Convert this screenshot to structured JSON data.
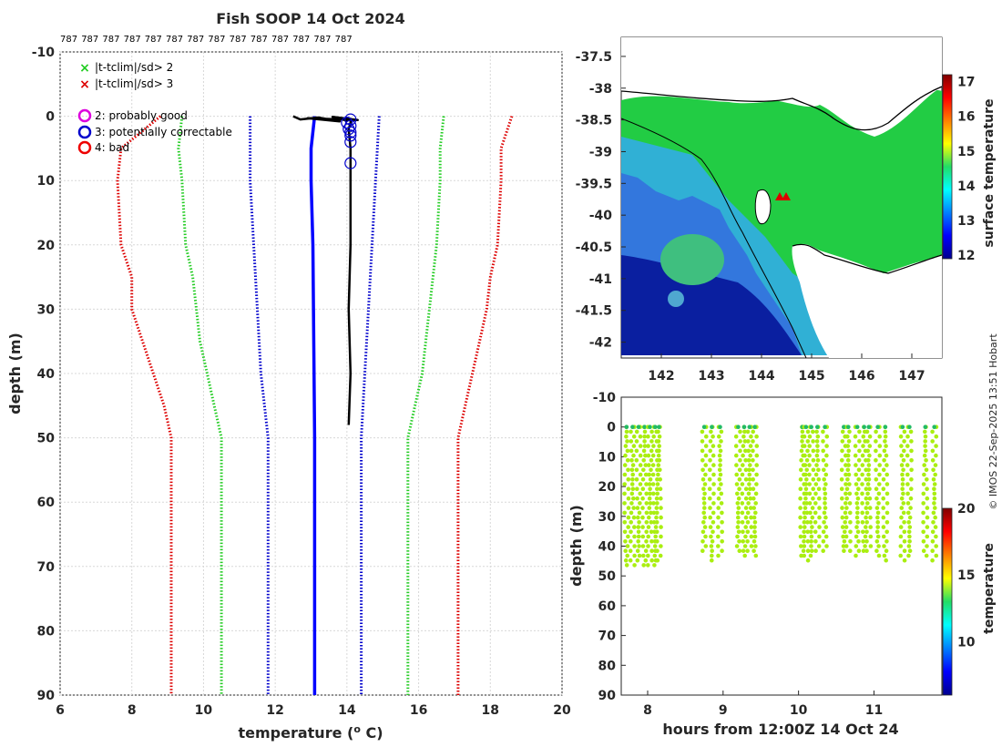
{
  "chart_data": [
    {
      "type": "line",
      "title": "Fish SOOP 14 Oct 2024",
      "top_labels": [
        "787",
        "787",
        "787",
        "787",
        "787",
        "787",
        "787",
        "787",
        "787",
        "787",
        "787",
        "787",
        "787",
        "787"
      ],
      "xlabel": "temperature (",
      "xlabel_sup": "o",
      "xlabel_end": " C)",
      "ylabel": "depth (m)",
      "xlim": [
        6,
        20
      ],
      "ylim": [
        90,
        -10
      ],
      "xticks": [
        "6",
        "8",
        "10",
        "12",
        "14",
        "16",
        "18",
        "20"
      ],
      "yticks": [
        "-10",
        "0",
        "10",
        "20",
        "30",
        "40",
        "50",
        "60",
        "70",
        "80",
        "90"
      ],
      "grid": true,
      "legend": [
        {
          "symbol": "x",
          "color": "#22cc22",
          "label": "|t-tclim|/sd> 2"
        },
        {
          "symbol": "x",
          "color": "#dd0000",
          "label": "|t-tclim|/sd> 3"
        },
        {
          "symbol": "o",
          "color": "#dd00dd",
          "label": "2: probably good"
        },
        {
          "symbol": "o",
          "color": "#0000cc",
          "label": "3: potentially correctable"
        },
        {
          "symbol": "o",
          "color": "#ee0000",
          "label": "4: bad"
        }
      ],
      "series": [
        {
          "name": "clim -3sd",
          "color": "#dd0000",
          "style": "dotted",
          "depth": [
            0,
            5,
            10,
            20,
            25,
            30,
            35,
            40,
            45,
            50,
            90
          ],
          "temp": [
            8.8,
            7.7,
            7.6,
            7.7,
            8.0,
            8.0,
            8.3,
            8.6,
            8.9,
            9.1,
            9.1
          ]
        },
        {
          "name": "clim -2sd",
          "color": "#22cc22",
          "style": "dotted",
          "depth": [
            0,
            5,
            10,
            20,
            25,
            30,
            35,
            40,
            45,
            50,
            90
          ],
          "temp": [
            9.4,
            9.3,
            9.4,
            9.5,
            9.7,
            9.8,
            9.9,
            10.1,
            10.3,
            10.5,
            10.5
          ]
        },
        {
          "name": "clim -1sd",
          "color": "#0000cc",
          "style": "dotted",
          "depth": [
            0,
            10,
            20,
            30,
            40,
            50,
            90
          ],
          "temp": [
            11.3,
            11.3,
            11.4,
            11.5,
            11.6,
            11.8,
            11.8
          ]
        },
        {
          "name": "clim mean",
          "color": "#0000ff",
          "style": "solid",
          "depth": [
            0,
            5,
            10,
            20,
            50,
            90
          ],
          "temp": [
            13.1,
            13.0,
            13.0,
            13.05,
            13.1,
            13.1
          ]
        },
        {
          "name": "clim +1sd",
          "color": "#0000cc",
          "style": "dotted",
          "depth": [
            0,
            10,
            20,
            30,
            40,
            50,
            90
          ],
          "temp": [
            14.9,
            14.8,
            14.7,
            14.6,
            14.5,
            14.4,
            14.4
          ]
        },
        {
          "name": "clim +2sd",
          "color": "#22cc22",
          "style": "dotted",
          "depth": [
            0,
            5,
            10,
            20,
            25,
            30,
            35,
            40,
            45,
            50,
            90
          ],
          "temp": [
            16.7,
            16.6,
            16.6,
            16.5,
            16.4,
            16.3,
            16.2,
            16.1,
            15.9,
            15.7,
            15.7
          ]
        },
        {
          "name": "clim +3sd",
          "color": "#dd0000",
          "style": "dotted",
          "depth": [
            0,
            5,
            10,
            20,
            25,
            30,
            35,
            40,
            45,
            50,
            90
          ],
          "temp": [
            18.6,
            18.3,
            18.3,
            18.2,
            18.0,
            17.9,
            17.7,
            17.5,
            17.3,
            17.1,
            17.1
          ]
        },
        {
          "name": "profile",
          "color": "#000000",
          "style": "solid",
          "depth": [
            0.0,
            0.5,
            0.2,
            0.8,
            0.3,
            0.6,
            0.1,
            0.7,
            0.4,
            1.0,
            2,
            5,
            10,
            20,
            30,
            40,
            48
          ],
          "temp": [
            12.5,
            12.7,
            13.2,
            13.8,
            12.9,
            14.3,
            13.6,
            14.0,
            14.1,
            14.1,
            14.05,
            14.1,
            14.1,
            14.1,
            14.05,
            14.1,
            14.05
          ]
        },
        {
          "name": "flagged 3",
          "color": "#0000cc",
          "style": "circles",
          "depth": [
            0.5,
            1.0,
            1.5,
            2.0,
            2.5,
            3.0,
            4.0,
            7.3
          ],
          "temp": [
            14.1,
            14.0,
            14.1,
            14.05,
            14.1,
            14.1,
            14.1,
            14.1
          ]
        }
      ]
    },
    {
      "type": "heatmap",
      "title": "",
      "xticks": [
        "142",
        "143",
        "144",
        "145",
        "146",
        "147"
      ],
      "yticks": [
        "-37.5",
        "-38",
        "-38.5",
        "-39",
        "-39.5",
        "-40",
        "-40.5",
        "-41",
        "-41.5",
        "-42"
      ],
      "xlim": [
        141.2,
        147.6
      ],
      "ylim": [
        -37.2,
        -42.25
      ],
      "colorbar_label": "surface temperature",
      "colorbar_ticks": [
        "12",
        "13",
        "14",
        "15",
        "16",
        "17"
      ],
      "colorbar_range": [
        11.9,
        17.2
      ],
      "markers": [
        {
          "lon": 144.3,
          "lat": -39.65,
          "color": "#dd0000",
          "symbol": "triangle"
        },
        {
          "lon": 144.45,
          "lat": -39.67,
          "color": "#dd0000",
          "symbol": "triangle"
        }
      ]
    },
    {
      "type": "scatter",
      "xlabel": "hours from 12:00Z 14 Oct 24",
      "ylabel": "depth (m)",
      "xticks": [
        "8",
        "9",
        "10",
        "11"
      ],
      "yticks": [
        "-10",
        "0",
        "10",
        "20",
        "30",
        "40",
        "50",
        "60",
        "70",
        "80",
        "90"
      ],
      "xlim": [
        7.65,
        11.9
      ],
      "ylim": [
        90,
        -10
      ],
      "colorbar_label": "temperature",
      "colorbar_ticks": [
        "10",
        "15",
        "20"
      ],
      "colorbar_range": [
        6,
        20
      ],
      "casts": [
        7.72,
        7.8,
        7.88,
        7.96,
        8.03,
        8.1,
        8.15,
        8.75,
        8.85,
        8.96,
        9.2,
        9.28,
        9.35,
        9.42,
        10.05,
        10.1,
        10.17,
        10.25,
        10.35,
        10.6,
        10.66,
        10.78,
        10.87,
        10.93,
        11.05,
        11.15,
        11.38,
        11.47,
        11.68,
        11.8
      ],
      "cast_max_depth": [
        47,
        48,
        46,
        48,
        47,
        48,
        46,
        43,
        45,
        44,
        43,
        44,
        43,
        44,
        44,
        45,
        44,
        43,
        43,
        42,
        42,
        44,
        43,
        42,
        44,
        45,
        46,
        44,
        44,
        46
      ],
      "point_color": "#aaee11",
      "surface_color": "#22bb66"
    }
  ],
  "copyright": "© IMOS 22-Sep-2025 13:51 Hobart"
}
